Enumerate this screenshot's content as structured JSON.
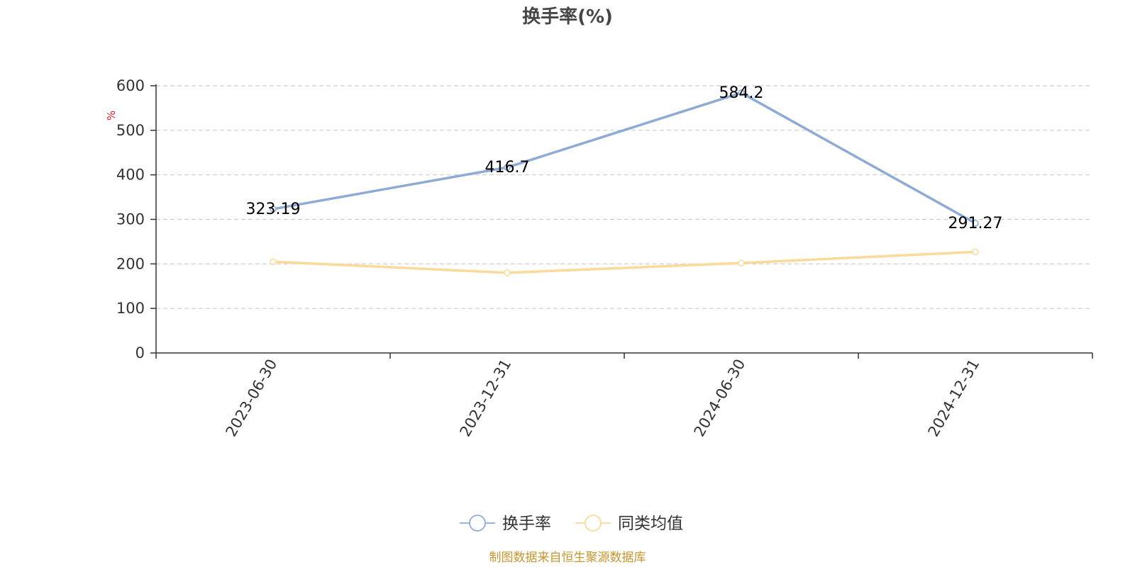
{
  "chart_data": {
    "type": "line",
    "title": "换手率(%)",
    "ylabel": "%",
    "ylim": [
      0,
      600
    ],
    "yticks": [
      0,
      100,
      200,
      300,
      400,
      500,
      600
    ],
    "categories": [
      "2023-06-30",
      "2023-12-31",
      "2024-06-30",
      "2024-12-31"
    ],
    "grid": true,
    "legend_position": "bottom",
    "series": [
      {
        "name": "换手率",
        "values": [
          323.19,
          416.7,
          584.2,
          291.27
        ],
        "color": "#8eabd6",
        "labels": [
          "323.19",
          "416.7",
          "584.2",
          "291.27"
        ]
      },
      {
        "name": "同类均值",
        "values": [
          205,
          180,
          202,
          227
        ],
        "color": "#fad999"
      }
    ],
    "source": "制图数据来自恒生聚源数据库"
  }
}
